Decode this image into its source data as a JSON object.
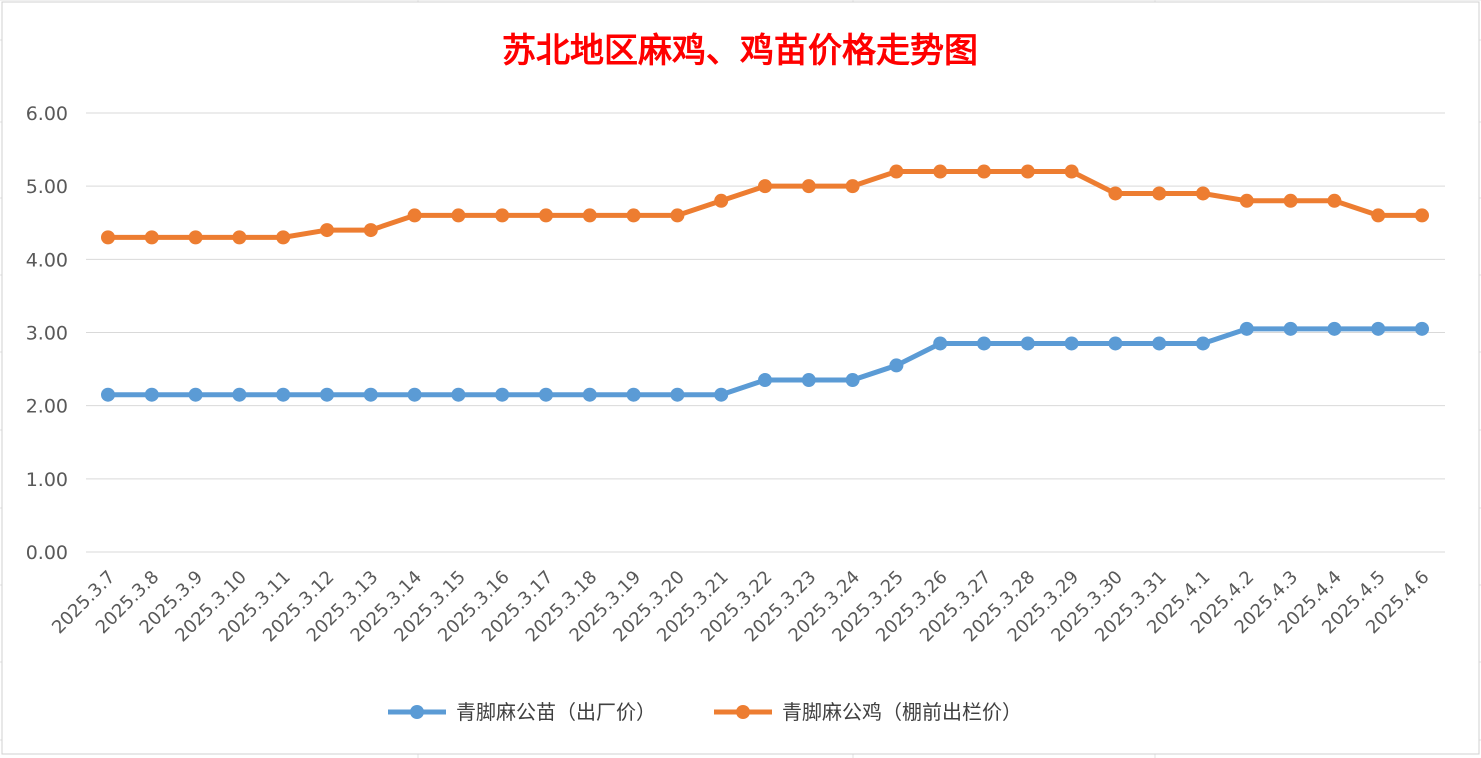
{
  "chart_data": {
    "type": "line",
    "title": "苏北地区麻鸡、鸡苗价格走势图",
    "title_color": "#FF0000",
    "xlabel": "",
    "ylabel": "",
    "ylim": [
      0,
      6
    ],
    "yticks": [
      "0.00",
      "1.00",
      "2.00",
      "3.00",
      "4.00",
      "5.00",
      "6.00"
    ],
    "grid": true,
    "legend_position": "bottom",
    "categories": [
      "2025.3.7",
      "2025.3.8",
      "2025.3.9",
      "2025.3.10",
      "2025.3.11",
      "2025.3.12",
      "2025.3.13",
      "2025.3.14",
      "2025.3.15",
      "2025.3.16",
      "2025.3.17",
      "2025.3.18",
      "2025.3.19",
      "2025.3.20",
      "2025.3.21",
      "2025.3.22",
      "2025.3.23",
      "2025.3.24",
      "2025.3.25",
      "2025.3.26",
      "2025.3.27",
      "2025.3.28",
      "2025.3.29",
      "2025.3.30",
      "2025.3.31",
      "2025.4.1",
      "2025.4.2",
      "2025.4.3",
      "2025.4.4",
      "2025.4.5",
      "2025.4.6"
    ],
    "series": [
      {
        "name": "青脚麻公苗（出厂价）",
        "color": "#5B9BD5",
        "values": [
          2.15,
          2.15,
          2.15,
          2.15,
          2.15,
          2.15,
          2.15,
          2.15,
          2.15,
          2.15,
          2.15,
          2.15,
          2.15,
          2.15,
          2.15,
          2.35,
          2.35,
          2.35,
          2.55,
          2.85,
          2.85,
          2.85,
          2.85,
          2.85,
          2.85,
          2.85,
          3.05,
          3.05,
          3.05,
          3.05,
          3.05
        ]
      },
      {
        "name": "青脚麻公鸡（棚前出栏价）",
        "color": "#ED7D31",
        "values": [
          4.3,
          4.3,
          4.3,
          4.3,
          4.3,
          4.4,
          4.4,
          4.6,
          4.6,
          4.6,
          4.6,
          4.6,
          4.6,
          4.6,
          4.8,
          5.0,
          5.0,
          5.0,
          5.2,
          5.2,
          5.2,
          5.2,
          5.2,
          4.9,
          4.9,
          4.9,
          4.8,
          4.8,
          4.8,
          4.6,
          4.6
        ]
      }
    ]
  }
}
